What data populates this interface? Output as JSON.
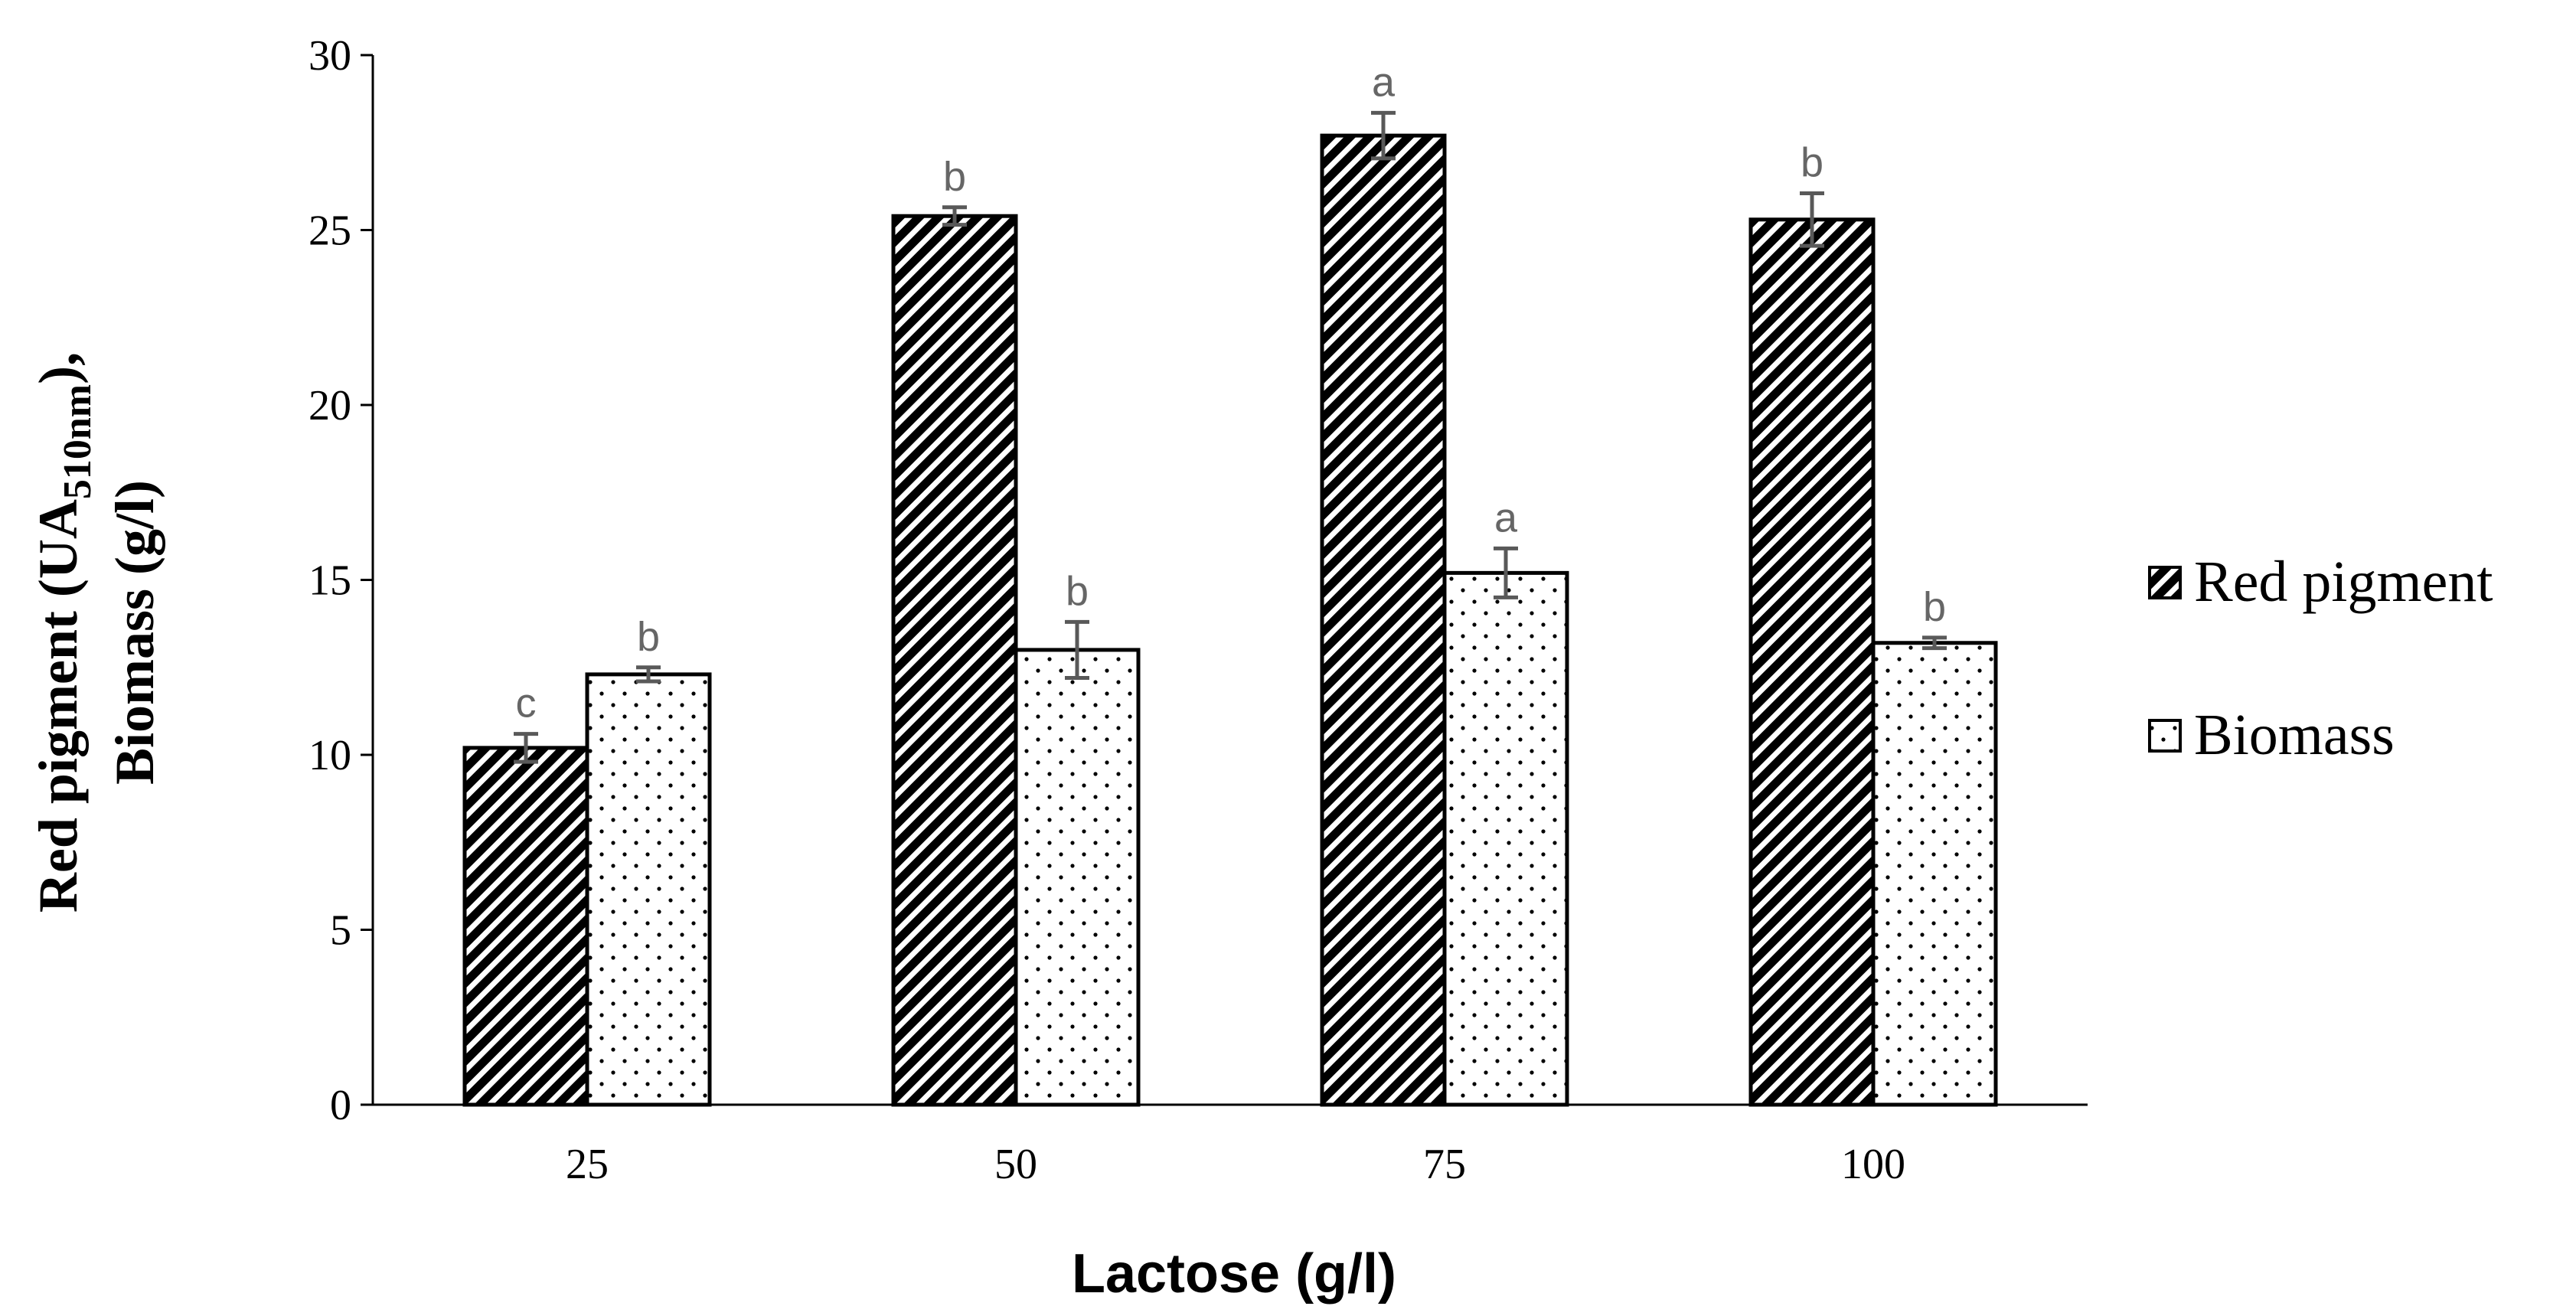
{
  "chart_data": {
    "type": "bar",
    "title": "",
    "xlabel": "Lactose (g/l)",
    "ylabel": {
      "line1_main": "Red pigment (UA",
      "line1_sub": "510nm",
      "line1_end": "),",
      "line2": "Biomass (g/l)"
    },
    "categories": [
      "25",
      "50",
      "75",
      "100"
    ],
    "ylim": [
      0,
      30
    ],
    "yticks": [
      0,
      5,
      10,
      15,
      20,
      25,
      30
    ],
    "series": [
      {
        "name": "Red pigment",
        "pattern": "diagonal-hatch",
        "values": [
          10.2,
          25.4,
          27.7,
          25.3
        ],
        "errors": [
          0.4,
          0.25,
          0.65,
          0.75
        ],
        "labels": [
          "c",
          "b",
          "a",
          "b"
        ]
      },
      {
        "name": "Biomass",
        "pattern": "dots",
        "values": [
          12.3,
          13.0,
          15.2,
          13.2
        ],
        "errors": [
          0.2,
          0.8,
          0.7,
          0.15
        ],
        "labels": [
          "b",
          "b",
          "a",
          "b"
        ]
      }
    ],
    "legend_position": "right",
    "colors": {
      "bar_stroke": "#000000",
      "error_bar": "#595959",
      "sig_label": "#666666"
    }
  }
}
